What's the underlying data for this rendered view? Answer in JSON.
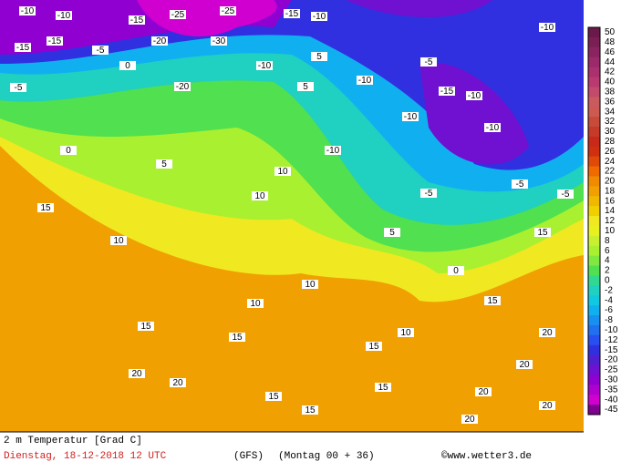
{
  "map": {
    "title": "2 m Temperatur [Grad C]",
    "date": "Dienstag, 18-12-2018  12 UTC",
    "model": "(GFS)",
    "run": "(Montag 00 + 36)",
    "credit": "©www.wetter3.de",
    "legend": {
      "levels": [
        50,
        48,
        46,
        44,
        42,
        40,
        38,
        36,
        34,
        32,
        30,
        28,
        26,
        24,
        22,
        20,
        18,
        16,
        14,
        12,
        10,
        8,
        6,
        4,
        2,
        0,
        -2,
        -4,
        -6,
        -8,
        -10,
        -12,
        -15,
        -20,
        -25,
        -30,
        -35,
        -40,
        -45
      ],
      "colors": [
        "#6a1a4a",
        "#7a1f55",
        "#8a2460",
        "#9a2a6a",
        "#aa3070",
        "#b83a70",
        "#c24a6a",
        "#c85a60",
        "#cc5a50",
        "#c84a3a",
        "#c63a2a",
        "#c82a1a",
        "#d03010",
        "#e04a08",
        "#f06a00",
        "#f08a00",
        "#f0a000",
        "#f0b800",
        "#f0d000",
        "#f0e820",
        "#e8f020",
        "#c8f030",
        "#a8f030",
        "#80e840",
        "#50e050",
        "#30d890",
        "#20d0c0",
        "#10c8e0",
        "#10b0f0",
        "#1890f0",
        "#2070f0",
        "#2850f0",
        "#3030e0",
        "#5020d0",
        "#7010d0",
        "#9000d0",
        "#b000d0",
        "#d000d0",
        "#800090"
      ]
    },
    "labels": [
      -10,
      -10,
      -15,
      -25,
      -25,
      -15,
      -10,
      -30,
      -20,
      -15,
      -15,
      -5,
      -5,
      0,
      -20,
      -10,
      5,
      5,
      -10,
      -5,
      -10,
      -15,
      -10,
      -10,
      -10,
      -10,
      5,
      0,
      15,
      10,
      10,
      10,
      5,
      -5,
      0,
      -5,
      -5,
      15,
      10,
      10,
      15,
      15,
      15,
      10,
      20,
      20,
      15,
      15,
      20,
      20,
      20,
      20,
      20,
      15,
      15
    ]
  }
}
